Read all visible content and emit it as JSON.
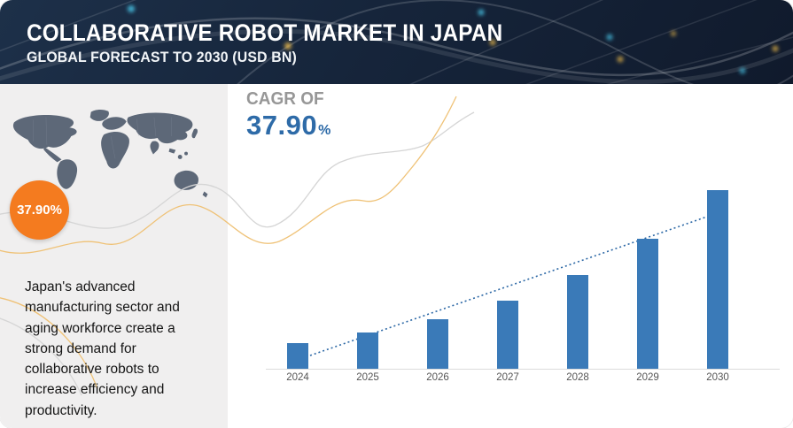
{
  "header": {
    "title": "COLLABORATIVE ROBOT MARKET IN JAPAN",
    "subtitle": "GLOBAL FORECAST TO 2030 (USD BN)"
  },
  "cagr": {
    "label": "CAGR OF",
    "value": "37.90",
    "unit": "%"
  },
  "map_badge": {
    "label": "37.90%"
  },
  "left_panel": {
    "description": "Japan's advanced manufacturing sector and aging workforce create a strong demand for collaborative robots to increase efficiency and productivity."
  },
  "graphics": {
    "header_art": "glowing-network-curves",
    "world_map": "world-map-silhouette",
    "waves": "decorative-wave-lines"
  },
  "colors": {
    "header_bg": "#16253B",
    "panel_bg": "#F0EFEF",
    "map": "#5D6878",
    "accent_orange": "#F47B1F",
    "cagr_gray": "#979797",
    "blue_text": "#2E6BA8",
    "bar": "#3A7AB8",
    "trendline": "#2B67A5",
    "axis": "#DCDCDC",
    "deco_gray": "#D5D5D5",
    "deco_yellow": "#EFC277"
  },
  "chart_data": {
    "type": "bar",
    "categories": [
      "2024",
      "2025",
      "2026",
      "2027",
      "2028",
      "2029",
      "2030"
    ],
    "values": [
      1.0,
      1.38,
      1.9,
      2.62,
      3.62,
      4.99,
      6.88
    ],
    "values_note": "relative units estimated from bar heights; no y-axis or value labels shown; growth consistent with 37.90% CAGR",
    "title": "",
    "xlabel": "",
    "ylabel": "",
    "ylim": [
      0,
      7
    ],
    "grid": false,
    "legend": false,
    "trendline": {
      "style": "dotted",
      "from": "2024",
      "to": "2030"
    }
  }
}
